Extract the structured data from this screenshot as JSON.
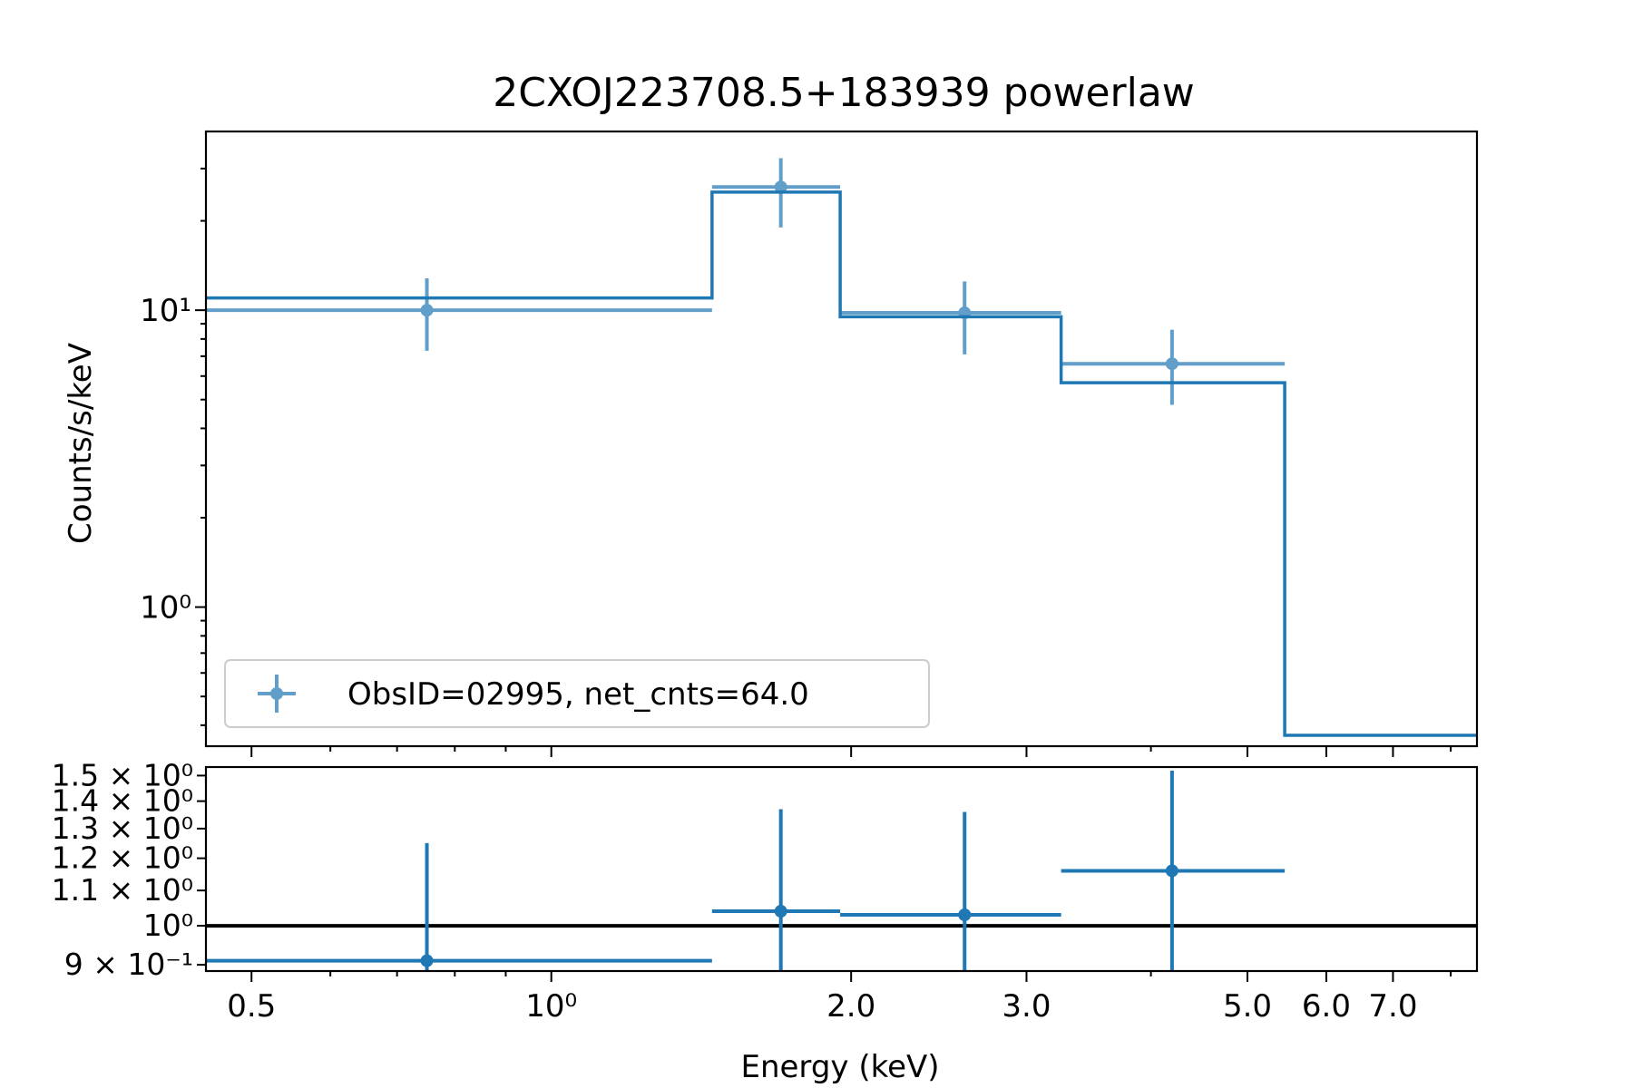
{
  "chart_data": {
    "type": "line",
    "title": "2CXOJ223708.5+183939 powerlaw",
    "xlabel": "Energy (keV)",
    "colors": {
      "model": "#1f77b4",
      "data": "#1f77b4",
      "reference_line": "#000000"
    },
    "xlim": [
      0.45,
      8.5
    ],
    "xscale": "log",
    "x_ticks": [
      {
        "value": 0.5,
        "label": "0.5"
      },
      {
        "value": 1.0,
        "label": "10⁰"
      },
      {
        "value": 2.0,
        "label": "2.0"
      },
      {
        "value": 3.0,
        "label": "3.0"
      },
      {
        "value": 5.0,
        "label": "5.0"
      },
      {
        "value": 6.0,
        "label": "6.0"
      },
      {
        "value": 7.0,
        "label": "7.0"
      }
    ],
    "x_minor_ticks": [
      0.6,
      0.7,
      0.8,
      0.9,
      4.0,
      8.0
    ],
    "top_panel": {
      "ylabel": "Counts/s/keV",
      "yscale": "log",
      "ylim": [
        0.34,
        40
      ],
      "y_ticks": [
        {
          "value": 1,
          "label": "10⁰"
        },
        {
          "value": 10,
          "label": "10¹"
        }
      ],
      "y_minor_ticks": [
        0.4,
        0.5,
        0.6,
        0.7,
        0.8,
        0.9,
        2,
        3,
        4,
        5,
        6,
        7,
        8,
        9,
        20,
        30
      ],
      "legend": {
        "position": "lower-left",
        "label": "ObsID=02995, net_cnts=64.0"
      },
      "data_points": [
        {
          "x": 0.75,
          "x_lo": 0.45,
          "x_hi": 1.45,
          "y": 10.0,
          "y_lo": 7.3,
          "y_hi": 12.8
        },
        {
          "x": 1.7,
          "x_lo": 1.45,
          "x_hi": 1.95,
          "y": 26.0,
          "y_lo": 19.0,
          "y_hi": 32.5
        },
        {
          "x": 2.6,
          "x_lo": 1.95,
          "x_hi": 3.25,
          "y": 9.8,
          "y_lo": 7.1,
          "y_hi": 12.5
        },
        {
          "x": 4.2,
          "x_lo": 3.25,
          "x_hi": 5.45,
          "y": 6.6,
          "y_lo": 4.8,
          "y_hi": 8.6
        }
      ],
      "model_steps": [
        {
          "x_lo": 0.45,
          "x_hi": 1.45,
          "y": 11.0
        },
        {
          "x_lo": 1.45,
          "x_hi": 1.95,
          "y": 25.0
        },
        {
          "x_lo": 1.95,
          "x_hi": 3.25,
          "y": 9.5
        },
        {
          "x_lo": 3.25,
          "x_hi": 5.45,
          "y": 5.7
        },
        {
          "x_lo": 5.45,
          "x_hi": 8.5,
          "y": 0.37
        }
      ]
    },
    "bottom_panel": {
      "yscale": "log",
      "ylim": [
        0.885,
        1.535
      ],
      "reference_y": 1.0,
      "y_ticks": [
        {
          "value": 0.9,
          "label": "9 × 10⁻¹"
        },
        {
          "value": 1.0,
          "label": "10⁰"
        },
        {
          "value": 1.1,
          "label": "1.1 × 10⁰"
        },
        {
          "value": 1.2,
          "label": "1.2 × 10⁰"
        },
        {
          "value": 1.3,
          "label": "1.3 × 10⁰"
        },
        {
          "value": 1.4,
          "label": "1.4 × 10⁰"
        },
        {
          "value": 1.5,
          "label": "1.5 × 10⁰"
        }
      ],
      "data_points": [
        {
          "x": 0.75,
          "x_lo": 0.45,
          "x_hi": 1.45,
          "y": 0.91,
          "y_lo": 0.885,
          "y_hi": 1.25
        },
        {
          "x": 1.7,
          "x_lo": 1.45,
          "x_hi": 1.95,
          "y": 1.04,
          "y_lo": 0.885,
          "y_hi": 1.37
        },
        {
          "x": 2.6,
          "x_lo": 1.95,
          "x_hi": 3.25,
          "y": 1.03,
          "y_lo": 0.885,
          "y_hi": 1.36
        },
        {
          "x": 4.2,
          "x_lo": 3.25,
          "x_hi": 5.45,
          "y": 1.16,
          "y_lo": 0.885,
          "y_hi": 1.52
        }
      ]
    }
  }
}
